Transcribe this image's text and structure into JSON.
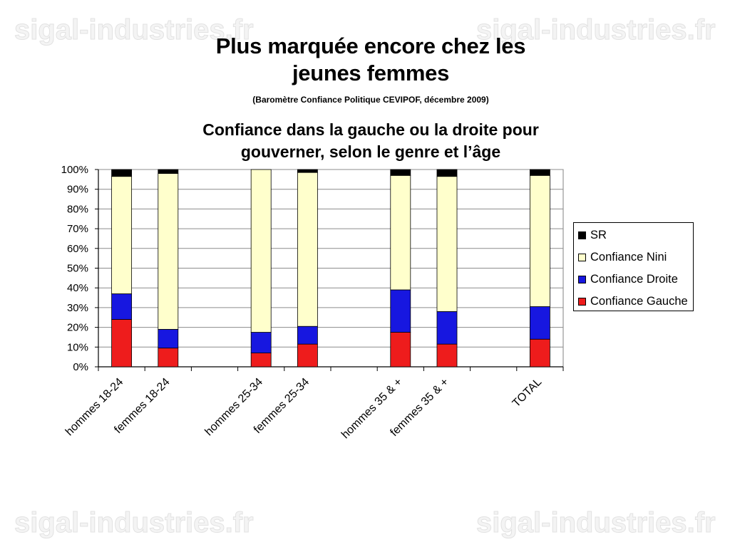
{
  "slide": {
    "title": "Plus marquée encore chez les jeunes femmes",
    "subtitle": "(Baromètre Confiance Politique CEVIPOF, décembre 2009)"
  },
  "watermark": "sigal-industries.fr",
  "chart_data": {
    "type": "bar",
    "stacked": true,
    "title": "Confiance dans la gauche ou la droite pour gouverner, selon le genre et l’âge",
    "xlabel": "",
    "ylabel": "",
    "ylim": [
      0,
      100
    ],
    "y_ticks": [
      "0%",
      "10%",
      "20%",
      "30%",
      "40%",
      "50%",
      "60%",
      "70%",
      "80%",
      "90%",
      "100%"
    ],
    "grid": true,
    "legend_position": "right",
    "category_slots": [
      "hommes 18-24",
      "femmes 18-24",
      "",
      "hommes 25-34",
      "femmes 25-34",
      "",
      "hommes 35 & +",
      "femmes 35 & +",
      "",
      "TOTAL"
    ],
    "categories": [
      "hommes 18-24",
      "femmes 18-24",
      "hommes 25-34",
      "femmes 25-34",
      "hommes 35 & +",
      "femmes 35 & +",
      "TOTAL"
    ],
    "series": [
      {
        "name": "Confiance Gauche",
        "color": "#ee1c1c",
        "values": [
          24,
          9.5,
          7,
          11.5,
          17.5,
          11.5,
          14
        ]
      },
      {
        "name": "Confiance Droite",
        "color": "#1717e0",
        "values": [
          13,
          9.5,
          10.5,
          9,
          21.5,
          16.5,
          16.5
        ]
      },
      {
        "name": "Confiance Nini",
        "color": "#ffffcc",
        "values": [
          59.5,
          79,
          82.5,
          78,
          58,
          68.5,
          66.5
        ]
      },
      {
        "name": "SR",
        "color": "#000000",
        "values": [
          3.5,
          2,
          0,
          1.5,
          3,
          3.5,
          3
        ]
      }
    ],
    "legend_order": [
      "SR",
      "Confiance Nini",
      "Confiance Droite",
      "Confiance Gauche"
    ]
  }
}
